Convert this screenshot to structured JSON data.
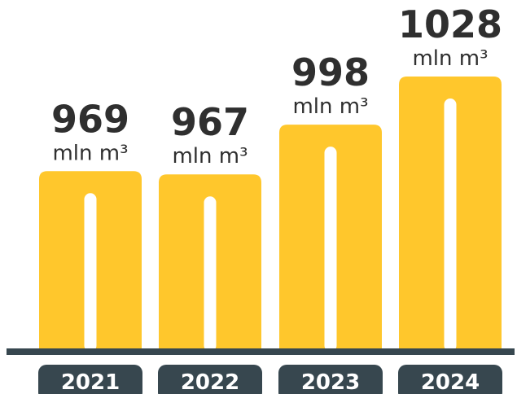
{
  "colors": {
    "bar": "#FFC72C",
    "slot": "#ffffff",
    "axis": "#37474F",
    "label": "#2F2F2F",
    "pill": "#37474F",
    "pill_text": "#ffffff"
  },
  "chart_data": {
    "type": "bar",
    "categories": [
      "2021",
      "2022",
      "2023",
      "2024"
    ],
    "values": [
      969,
      967,
      998,
      1028
    ],
    "value_labels": [
      "969",
      "967",
      "998",
      "1028"
    ],
    "unit": "mln m³",
    "title": "",
    "xlabel": "",
    "ylabel": "",
    "grid": false
  }
}
